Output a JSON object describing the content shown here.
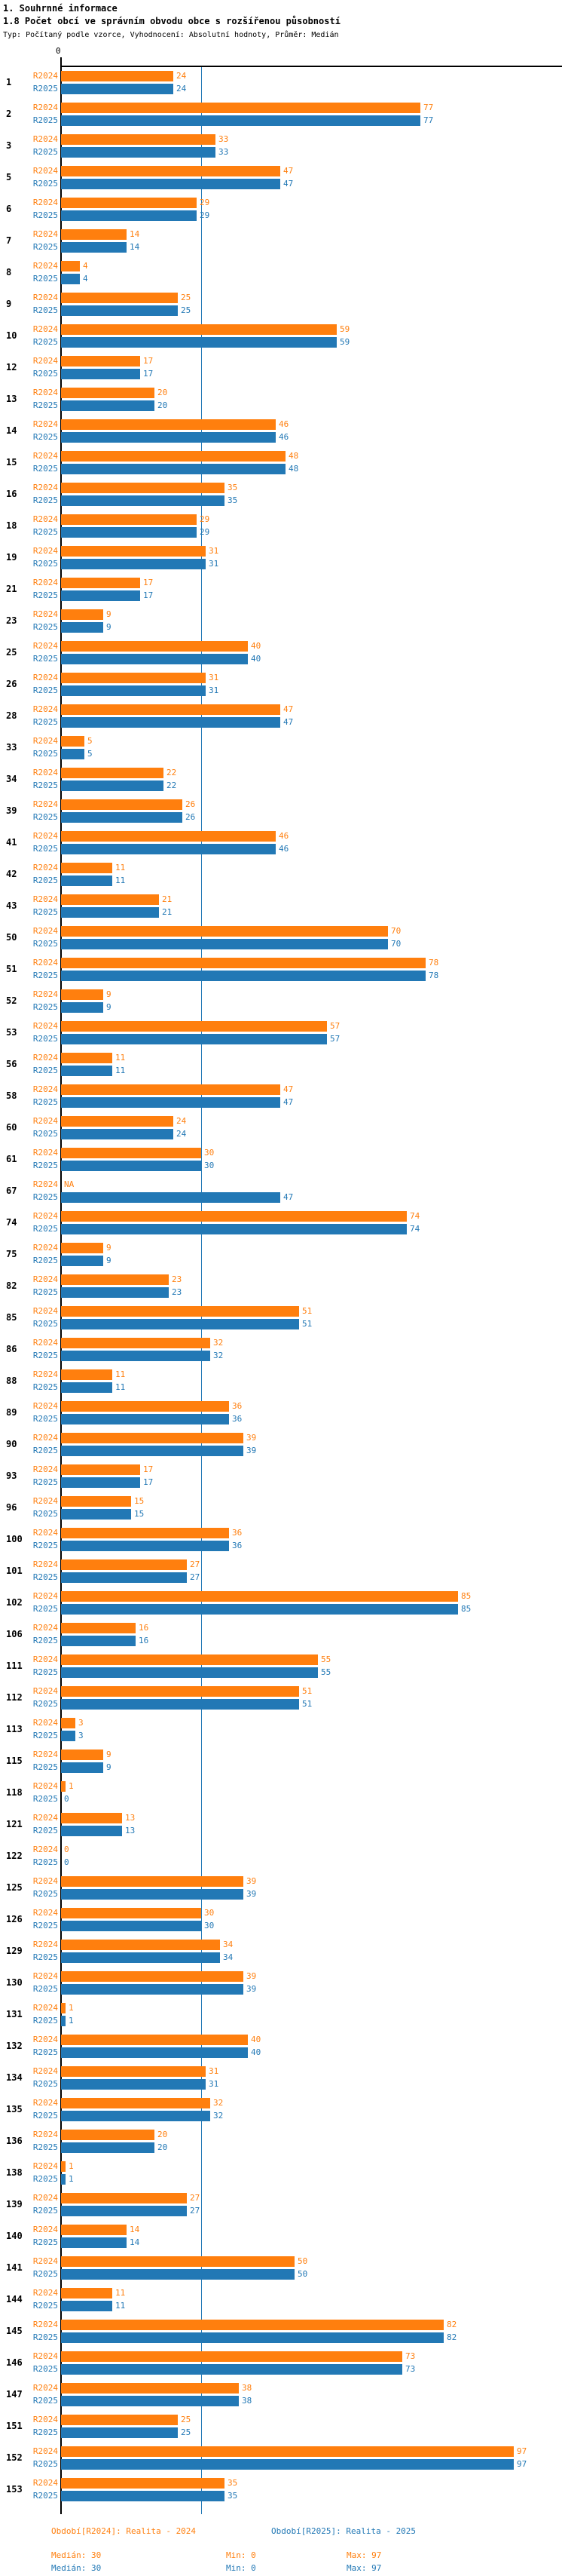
{
  "header": {
    "title": "1. Souhrnné informace",
    "subtitle": "1.8 Počet obcí ve správním obvodu obce s rozšířenou působností",
    "meta": "Typ: Počítaný podle vzorce, Vyhodnocení: Absolutní hodnoty, Průměr: Medián"
  },
  "chart_data": {
    "type": "bar",
    "orientation": "horizontal",
    "title": "1.8 Počet obcí ve správním obvodu obce s rozšířenou působností",
    "xlabel": "",
    "ylabel": "",
    "xlim": [
      0,
      107
    ],
    "axis": {
      "tick_label": "0",
      "median_line_value": 30
    },
    "grid": false,
    "legend_position": "bottom",
    "na_text": "NA",
    "colors": {
      "R2024": "#ff7f0e",
      "R2025": "#2278b5",
      "axis": "#000000",
      "median_line": "#2278b5"
    },
    "categories": [
      "1",
      "2",
      "3",
      "5",
      "6",
      "7",
      "8",
      "9",
      "10",
      "12",
      "13",
      "14",
      "15",
      "16",
      "18",
      "19",
      "21",
      "23",
      "25",
      "26",
      "28",
      "33",
      "34",
      "39",
      "41",
      "42",
      "43",
      "50",
      "51",
      "52",
      "53",
      "56",
      "58",
      "60",
      "61",
      "67",
      "74",
      "75",
      "82",
      "85",
      "86",
      "88",
      "89",
      "90",
      "93",
      "96",
      "100",
      "101",
      "102",
      "106",
      "111",
      "112",
      "113",
      "115",
      "118",
      "121",
      "122",
      "125",
      "126",
      "129",
      "130",
      "131",
      "132",
      "134",
      "135",
      "136",
      "138",
      "139",
      "140",
      "141",
      "144",
      "145",
      "146",
      "147",
      "151",
      "152",
      "153"
    ],
    "series": [
      {
        "name": "R2024",
        "values": [
          24,
          77,
          33,
          47,
          29,
          14,
          4,
          25,
          59,
          17,
          20,
          46,
          48,
          35,
          29,
          31,
          17,
          9,
          40,
          31,
          47,
          5,
          22,
          26,
          46,
          11,
          21,
          70,
          78,
          9,
          57,
          11,
          47,
          24,
          30,
          null,
          74,
          9,
          23,
          51,
          32,
          11,
          36,
          39,
          17,
          15,
          36,
          27,
          85,
          16,
          55,
          51,
          3,
          9,
          1,
          13,
          0,
          39,
          30,
          34,
          39,
          1,
          40,
          31,
          32,
          20,
          1,
          27,
          14,
          50,
          11,
          82,
          73,
          38,
          25,
          97,
          35
        ]
      },
      {
        "name": "R2025",
        "values": [
          24,
          77,
          33,
          47,
          29,
          14,
          4,
          25,
          59,
          17,
          20,
          46,
          48,
          35,
          29,
          31,
          17,
          9,
          40,
          31,
          47,
          5,
          22,
          26,
          46,
          11,
          21,
          70,
          78,
          9,
          57,
          11,
          47,
          24,
          30,
          47,
          74,
          9,
          23,
          51,
          32,
          11,
          36,
          39,
          17,
          15,
          36,
          27,
          85,
          16,
          55,
          51,
          3,
          9,
          0,
          13,
          0,
          39,
          30,
          34,
          39,
          1,
          40,
          31,
          32,
          20,
          1,
          27,
          14,
          50,
          11,
          82,
          73,
          38,
          25,
          97,
          35
        ]
      }
    ]
  },
  "footer": {
    "legend_r2024": "Období[R2024]: Realita - 2024",
    "legend_r2025": "Období[R2025]: Realita - 2025",
    "stats_r2024": {
      "median": "Medián: 30",
      "min": "Min: 0",
      "max": "Max: 97"
    },
    "stats_r2025": {
      "median": "Medián: 30",
      "min": "Min: 0",
      "max": "Max: 97"
    }
  }
}
